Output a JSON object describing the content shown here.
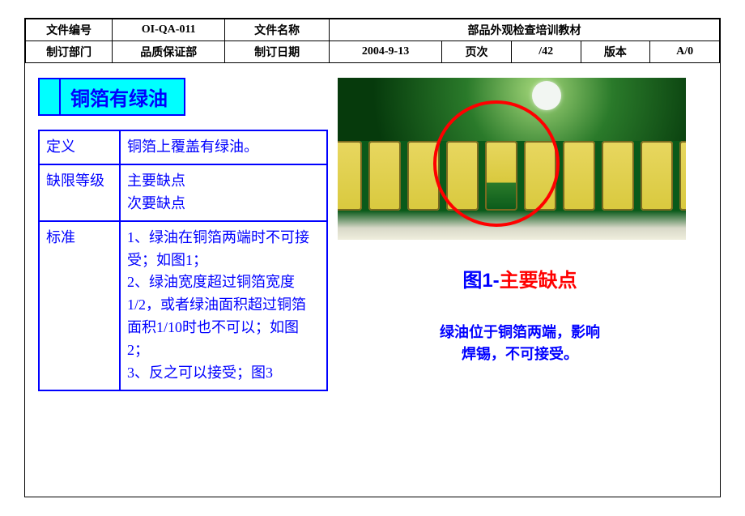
{
  "header": {
    "row1": {
      "c1": "文件编号",
      "c2": "OI-QA-011",
      "c3": "文件名称",
      "c4": "部品外观检查培训教材"
    },
    "row2": {
      "c1": "制订部门",
      "c2": "品质保证部",
      "c3": "制订日期",
      "c4": "2004-9-13",
      "c5": "页次",
      "c6": "/42",
      "c7": "版本",
      "c8": "A/0"
    }
  },
  "title": "铜箔有绿油",
  "info": {
    "def_label": "定义",
    "def_value": "铜箔上覆盖有绿油。",
    "grade_label": "缺限等级",
    "grade_value": "主要缺点\n次要缺点",
    "std_label": "标准",
    "std_value": "1、绿油在铜箔两端时不可接受；如图1；\n2、绿油宽度超过铜箔宽度1/2，或者绿油面积超过铜箔面积1/10时也不可以；如图2；\n3、反之可以接受；图3"
  },
  "figure": {
    "title_prefix": "图1-",
    "title_main": "主要缺点",
    "desc_line1": "绿油位于铜箔两端，影响",
    "desc_line2": "焊锡，不可接受。",
    "colors": {
      "pcb_dark": "#0a5a1a",
      "pcb_light": "#2a7a2a",
      "pad": "#d9c93e",
      "pad_hi": "#e8d760",
      "circle": "#ff0000",
      "dot": "#f2f6f2"
    },
    "pad_count": 10,
    "defect_pad_index": 4
  },
  "style": {
    "border_color": "#000000",
    "accent_color": "#0000ff",
    "title_bg": "#00ffff",
    "page_bg": "#ffffff"
  }
}
